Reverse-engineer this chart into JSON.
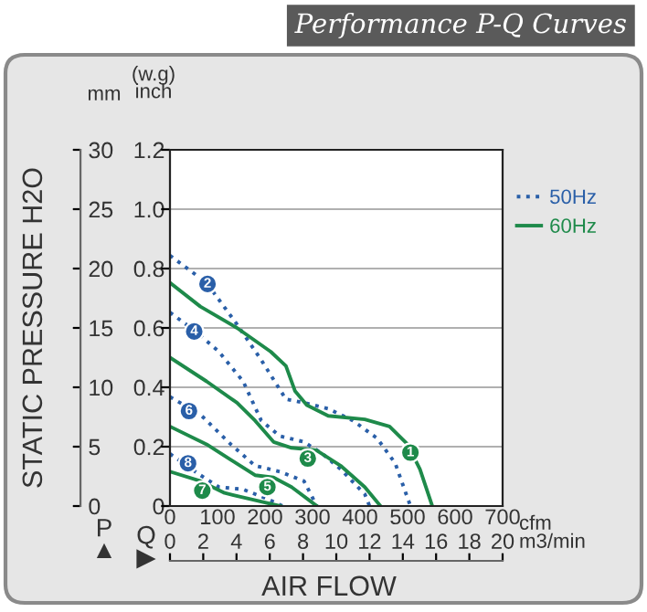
{
  "chart_data": {
    "type": "line",
    "title": "Performance P-Q Curves",
    "xlabel": "AIR FLOW",
    "ylabel": "STATIC PRESSURE H2O",
    "xlim": [
      0,
      700
    ],
    "xticks": [
      0,
      100,
      200,
      300,
      400,
      500,
      600,
      700
    ],
    "x2lim": [
      0,
      20
    ],
    "x2ticks": [
      0,
      2,
      4,
      6,
      8,
      10,
      12,
      14,
      16,
      18,
      20
    ],
    "ylim": [
      0,
      30
    ],
    "yticks": [
      0,
      5,
      10,
      15,
      20,
      25,
      30
    ],
    "y2lim": [
      0,
      1.2
    ],
    "y2ticks": [
      0,
      0.2,
      0.4,
      0.6,
      0.8,
      {
        "value": 1.0,
        "label": "1.0"
      },
      1.2
    ],
    "grid": "y",
    "legend": "top right",
    "series": [
      {
        "name": "50Hz",
        "color": "#2a5fa8",
        "line_style": "dotted",
        "x": [
          0,
          77,
          141,
          192,
          244,
          282,
          333,
          385,
          436,
          474,
          506
        ],
        "values": [
          21.1,
          18.8,
          15.3,
          12.3,
          9.0,
          8.7,
          8.2,
          7.2,
          5.7,
          3.6,
          0
        ]
      },
      {
        "color": "#2a5fa8",
        "line_style": "dotted",
        "x": [
          0,
          51,
          103,
          154,
          192,
          231,
          282,
          321,
          359,
          410,
          420
        ],
        "values": [
          16.3,
          14.8,
          13.0,
          10.5,
          7.2,
          5.9,
          5.4,
          4.4,
          3.1,
          1.0,
          0
        ]
      },
      {
        "color": "#2a5fa8",
        "line_style": "dotted",
        "x": [
          0,
          64,
          128,
          179,
          231,
          282,
          309
        ],
        "values": [
          9.2,
          7.7,
          5.2,
          3.4,
          2.9,
          2.1,
          0
        ]
      },
      {
        "color": "#2a5fa8",
        "line_style": "dotted",
        "x": [
          0,
          64,
          103,
          154,
          205,
          237
        ],
        "values": [
          4.4,
          2.6,
          1.6,
          1.4,
          0.6,
          0
        ]
      },
      {
        "name": "60Hz",
        "color": "#1e8a4a",
        "line_style": "solid",
        "x": [
          0,
          64,
          141,
          212,
          244,
          263,
          288,
          333,
          410,
          462,
          500,
          526,
          552
        ],
        "values": [
          18.8,
          16.8,
          15.0,
          13.0,
          11.8,
          9.7,
          8.5,
          7.6,
          7.3,
          6.7,
          5.2,
          3.1,
          0
        ]
      },
      {
        "color": "#1e8a4a",
        "line_style": "solid",
        "x": [
          0,
          77,
          141,
          179,
          218,
          256,
          308,
          359,
          410,
          443
        ],
        "values": [
          12.5,
          10.5,
          8.7,
          7.2,
          5.4,
          4.9,
          4.7,
          3.4,
          1.6,
          0
        ]
      },
      {
        "color": "#1e8a4a",
        "line_style": "solid",
        "x": [
          0,
          77,
          128,
          179,
          218,
          256,
          309
        ],
        "values": [
          6.7,
          5.2,
          3.9,
          2.6,
          2.4,
          1.6,
          0
        ]
      },
      {
        "color": "#1e8a4a",
        "line_style": "solid",
        "x": [
          0,
          64,
          115,
          167,
          232
        ],
        "values": [
          2.9,
          2.1,
          1.1,
          0.6,
          0
        ]
      }
    ],
    "annotations": [
      {
        "text": "2",
        "x": 79,
        "y": 18.7
      },
      {
        "text": "4",
        "x": 51,
        "y": 14.7
      },
      {
        "text": "6",
        "x": 40,
        "y": 8.0
      },
      {
        "text": "8",
        "x": 38,
        "y": 3.6
      },
      {
        "text": "1",
        "x": 506,
        "y": 4.5
      },
      {
        "text": "3",
        "x": 290,
        "y": 4.0
      },
      {
        "text": "5",
        "x": 205,
        "y": 1.6
      },
      {
        "text": "7",
        "x": 68,
        "y": 1.3
      },
      "mm",
      "(w.g)\ninch",
      "cfm",
      "m3/min",
      "P\n▲",
      "Q\n▶"
    ]
  }
}
